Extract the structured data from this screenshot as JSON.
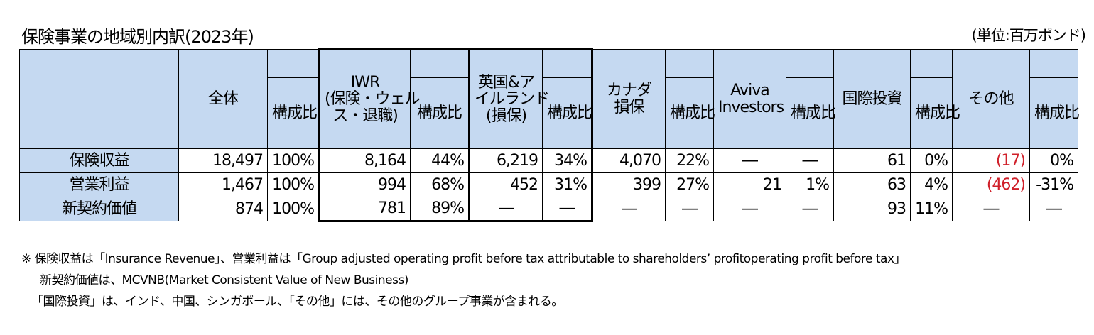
{
  "title": "保険事業の地域別内訳(2023年)",
  "unit": "(単位:百万ポンド)",
  "headers": {
    "total": "全体",
    "iwr": [
      "IWR",
      "(保険・ウェル",
      "ス・退職)"
    ],
    "uk": [
      "英国&ア",
      "イルランド",
      "(損保)"
    ],
    "canada": [
      "カナダ",
      "損保"
    ],
    "aviva": [
      "Aviva",
      "Investors"
    ],
    "intl": "国際投資",
    "other": "その他",
    "ratio": "構成比"
  },
  "rows": [
    {
      "label": "保険収益",
      "total": "18,497",
      "total_r": "100%",
      "iwr": "8,164",
      "iwr_r": "44%",
      "uk": "6,219",
      "uk_r": "34%",
      "canada": "4,070",
      "canada_r": "22%",
      "aviva": "―",
      "aviva_r": "―",
      "intl": "61",
      "intl_r": "0%",
      "other": "(17)",
      "other_r": "0%"
    },
    {
      "label": "営業利益",
      "total": "1,467",
      "total_r": "100%",
      "iwr": "994",
      "iwr_r": "68%",
      "uk": "452",
      "uk_r": "31%",
      "canada": "399",
      "canada_r": "27%",
      "aviva": "21",
      "aviva_r": "1%",
      "intl": "63",
      "intl_r": "4%",
      "other": "(462)",
      "other_r": "-31%"
    },
    {
      "label": "新契約価値",
      "total": "874",
      "total_r": "100%",
      "iwr": "781",
      "iwr_r": "89%",
      "uk": "―",
      "uk_r": "―",
      "canada": "―",
      "canada_r": "―",
      "aviva": "―",
      "aviva_r": "―",
      "intl": "93",
      "intl_r": "11%",
      "other": "―",
      "other_r": "―"
    }
  ],
  "notes": [
    "※ 保険収益は「Insurance Revenue」、営業利益は「Group adjusted operating profit before tax attributable to shareholders’ profitoperating profit before tax」",
    "新契約価値は、MCVNB(Market Consistent Value of New Business)",
    "「国際投資」は、インド、中国、シンガポール、「その他」には、その他のグループ事業が含まれる。"
  ],
  "colors": {
    "header_bg": "#c5d9f1",
    "negative": "#d0202a"
  }
}
